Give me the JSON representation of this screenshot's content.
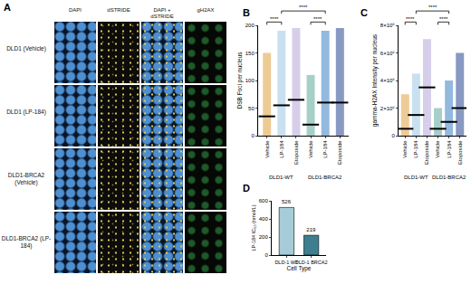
{
  "images": {
    "label": "A",
    "columns": [
      "DAPI",
      "dSTRIDE",
      "DAPI + dSTRIDE",
      "gH2AX"
    ],
    "rows": [
      "DLD1 (Vehicle)",
      "DLD1 (LP-184)",
      "DLD1-BRCA2 (Vehicle)",
      "DLD1-BRCA2 (LP-184)"
    ]
  },
  "chart_data": [
    {
      "title": "B",
      "type": "dot",
      "ylabel": "DSB Foci per nucleus",
      "categories": [
        "Vehicle",
        "LP-184",
        "Etoposide",
        "Vehicle",
        "LP-184",
        "Etoposide"
      ],
      "groups": [
        {
          "name": "DLD1-WT",
          "categories": [
            0,
            1,
            2
          ]
        },
        {
          "name": "DLD1-BRCA2",
          "categories": [
            3,
            4,
            5
          ]
        }
      ],
      "values": [
        35,
        55,
        65,
        20,
        60,
        60
      ],
      "range_low": [
        0,
        0,
        0,
        0,
        0,
        0
      ],
      "range_high": [
        150,
        190,
        195,
        110,
        190,
        195
      ],
      "colors": [
        "#e0a040",
        "#9cc6e4",
        "#b4a6d8",
        "#5ea89e",
        "#3b7fc2",
        "#27458f"
      ],
      "ylim": [
        0,
        200
      ],
      "yticks": [
        0,
        50,
        100,
        150,
        200
      ],
      "comparisons": [
        {
          "pair": [
            0,
            1
          ],
          "label": "****"
        },
        {
          "pair": [
            3,
            4
          ],
          "label": "****"
        },
        {
          "pair": [
            1,
            4
          ],
          "label": "****"
        }
      ]
    },
    {
      "title": "C",
      "type": "dot",
      "ylabel": "gamma-H2AX Intensity per nucleus",
      "categories": [
        "Vehicle",
        "LP-184",
        "Etoposide",
        "Vehicle",
        "LP-184",
        "Etoposide"
      ],
      "groups": [
        {
          "name": "DLD1-WT",
          "categories": [
            0,
            1,
            2
          ]
        },
        {
          "name": "DLD1-BRCA2",
          "categories": [
            3,
            4,
            5
          ]
        }
      ],
      "values": [
        500000,
        1500000,
        3500000,
        500000,
        1000000,
        2000000
      ],
      "range_low": [
        0,
        0,
        0,
        0,
        0,
        0
      ],
      "range_high": [
        3000000,
        4500000,
        7000000,
        2000000,
        4000000,
        6000000
      ],
      "colors": [
        "#e0a040",
        "#9cc6e4",
        "#b4a6d8",
        "#5ea89e",
        "#3b7fc2",
        "#27458f"
      ],
      "ylim": [
        0,
        8000000
      ],
      "yticks": [
        0,
        {
          "value": 2000000,
          "label": "2×10⁶"
        },
        {
          "value": 4000000,
          "label": "4×10⁶"
        },
        {
          "value": 6000000,
          "label": "6×10⁶"
        },
        {
          "value": 8000000,
          "label": "8×10⁶"
        }
      ],
      "comparisons": [
        {
          "pair": [
            0,
            1
          ],
          "label": "****"
        },
        {
          "pair": [
            3,
            4
          ],
          "label": "****"
        },
        {
          "pair": [
            1,
            4
          ],
          "label": "****"
        }
      ]
    },
    {
      "title": "D",
      "type": "bar",
      "xlabel": "Cell Type",
      "ylabel": "LP-184 IC₅₀ (nmol/L)",
      "categories": [
        "DLD-1 WT",
        "DLD-1 BRCA2"
      ],
      "values": [
        526,
        219
      ],
      "colors": [
        "#a6ccd9",
        "#3d7e8f"
      ],
      "ylim": [
        0,
        600
      ],
      "yticks": [
        0,
        200,
        400,
        600
      ],
      "data_labels": true
    }
  ]
}
